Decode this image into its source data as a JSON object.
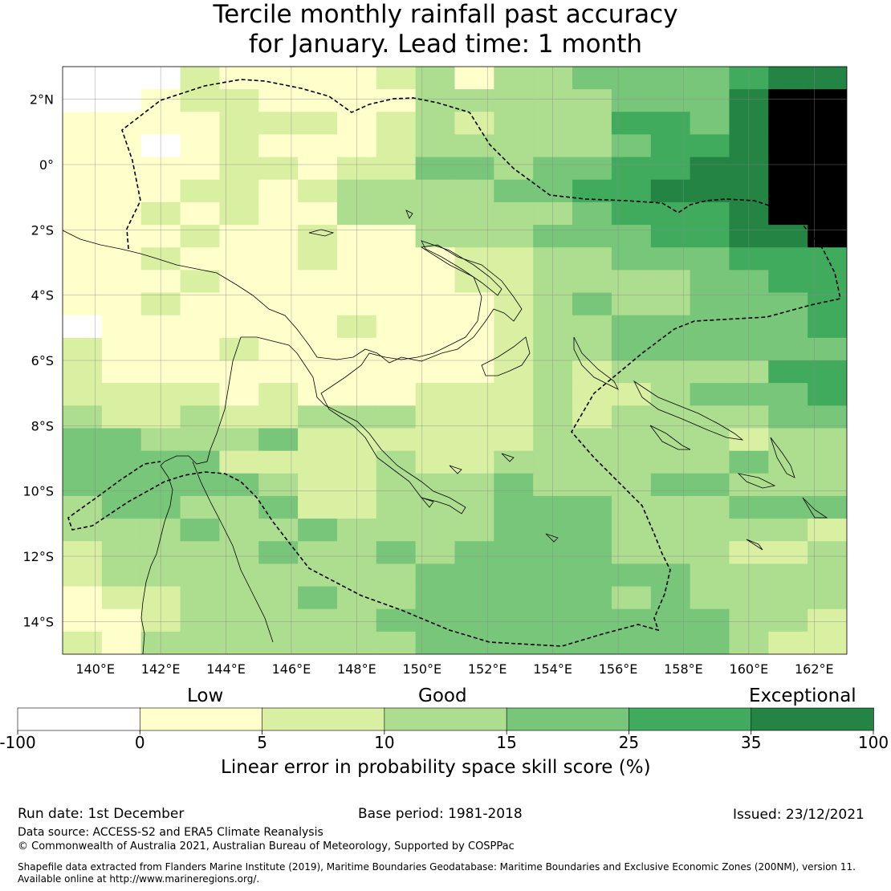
{
  "title": {
    "line1": "Tercile monthly rainfall past accuracy",
    "line2": "for January. Lead time: 1 month"
  },
  "map": {
    "lat_ticks": [
      "2°N",
      "0°",
      "2°S",
      "4°S",
      "6°S",
      "8°S",
      "10°S",
      "12°S",
      "14°S"
    ],
    "lon_ticks": [
      "140°E",
      "142°E",
      "144°E",
      "146°E",
      "148°E",
      "150°E",
      "152°E",
      "154°E",
      "156°E",
      "158°E",
      "160°E",
      "162°E"
    ],
    "lon_range": [
      139,
      163
    ],
    "lat_range": [
      -15,
      3
    ],
    "grid_rows": [
      "00021111231334444566",
      "00122111133333444677",
      "11112221232333554677",
      "11012111233333455677",
      "11112212244344556677",
      "11122123333445566677",
      "11212113333334555677",
      "11121121133344455667",
      "11211121112233444555",
      "11121111112233334455",
      "11211111111234334445",
      "01111112111233444445",
      "21112111111233444444",
      "21111111111232333355",
      "22221211122232234445",
      "32232233322232333344",
      "44333422222233333233",
      "44442222322333333433",
      "44444322333433344333",
      "34433422333444333444",
      "33343343333444333332",
      "23333433434444333223",
      "23333333344444443333",
      "12233343344444343333",
      "11233333444444444332",
      "21333333344444444322"
    ]
  },
  "colorbar": {
    "category_low": "Low",
    "category_good": "Good",
    "category_exceptional": "Exceptional",
    "ticks": [
      "-100",
      "0",
      "5",
      "10",
      "15",
      "25",
      "35",
      "100"
    ],
    "colors": [
      "#ffffff",
      "#ffffcc",
      "#d9f0a3",
      "#addd8e",
      "#78c679",
      "#41ab5d",
      "#238443"
    ],
    "label": "Linear error in probability space skill score (%)"
  },
  "footer": {
    "run_date": "Run date: 1st December",
    "base_period": "Base period: 1981-2018",
    "issued": "Issued: 23/12/2021",
    "data_source": "Data source: ACCESS-S2 and ERA5 Climate Reanalysis",
    "copyright": "© Commonwealth of Australia 2021, Australian Bureau of Meteorology, Supported by COSPPac",
    "shapefile_line1": "Shapefile data extracted from Flanders Marine Institute (2019), Maritime Boundaries Geodatabase: Maritime Boundaries and Exclusive Economic Zones (200NM), version 11.",
    "shapefile_line2": "Available online at http://www.marineregions.org/."
  }
}
